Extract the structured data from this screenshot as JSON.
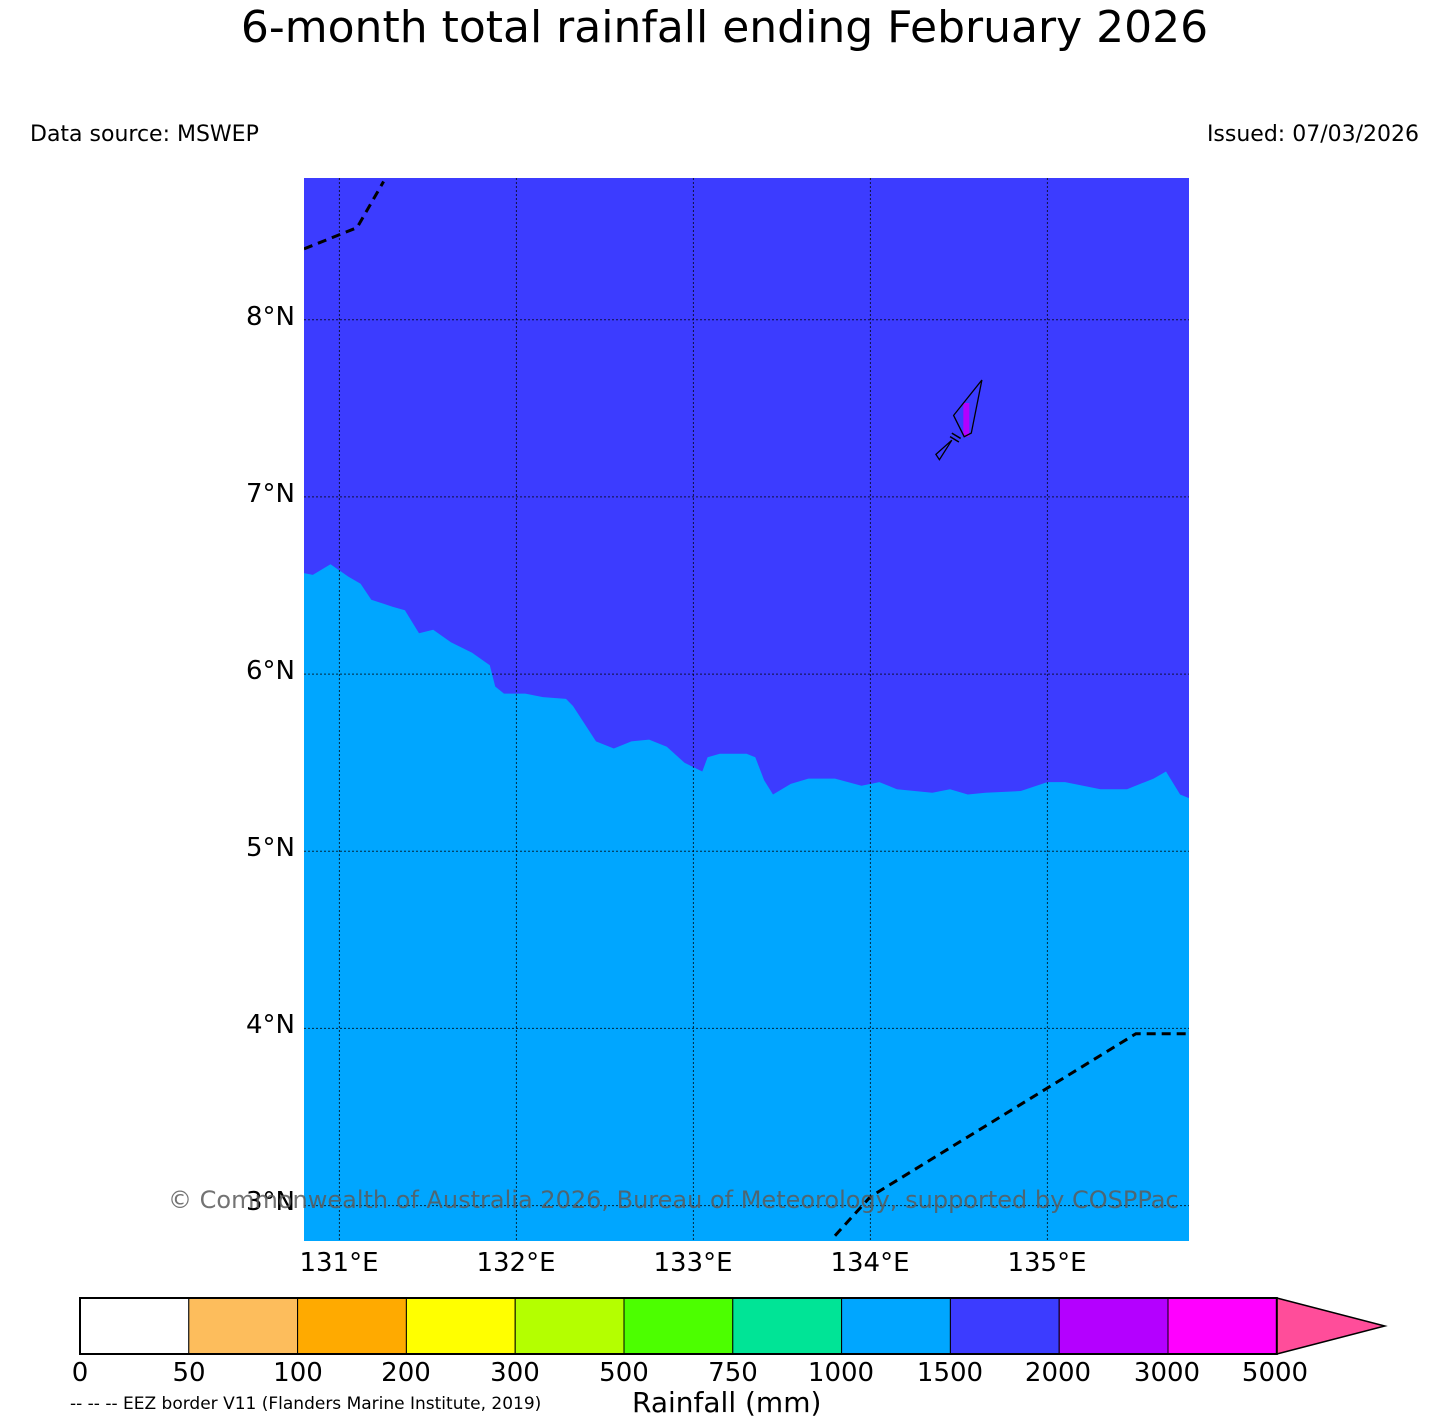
{
  "title": "6-month total rainfall ending February 2026",
  "data_source": "Data source: MSWEP",
  "issued": "Issued: 07/03/2026",
  "copyright": "© Commonwealth of Australia 2026, Bureau of Meteorology, supported by COSPPac",
  "eez_note": "-- -- -- EEZ border V11 (Flanders Marine Institute, 2019)",
  "colorbar_title": "Rainfall (mm)",
  "lat_labels": [
    "8°N",
    "7°N",
    "6°N",
    "5°N",
    "4°N",
    "3°N"
  ],
  "lon_labels": [
    "131°E",
    "132°E",
    "133°E",
    "134°E",
    "135°E"
  ],
  "colorbar_ticks": [
    "0",
    "50",
    "100",
    "200",
    "300",
    "500",
    "750",
    "1000",
    "1500",
    "2000",
    "3000",
    "5000"
  ],
  "colorbar_colors": [
    "#ffffff",
    "#fdbd5c",
    "#ffaa00",
    "#ffff00",
    "#b4ff00",
    "#4cff00",
    "#00e496",
    "#00a6ff",
    "#3c3cff",
    "#b400ff",
    "#ff00ff",
    "#ff4d9a"
  ],
  "chart_data": {
    "type": "map",
    "lon_range": [
      130.8,
      135.8
    ],
    "lat_range": [
      2.8,
      8.8
    ],
    "regions": [
      {
        "category": "1500-2000 mm",
        "color": "#3c3cff",
        "area": "north"
      },
      {
        "category": "1000-1500 mm",
        "color": "#00a6ff",
        "area": "south"
      },
      {
        "category": "2000-3000 mm",
        "color": "#b400ff",
        "area": "small patch near 134.55°E 7.45°N"
      }
    ],
    "boundary_1500_2000": [
      [
        130.8,
        6.57
      ],
      [
        130.85,
        6.56
      ],
      [
        130.95,
        6.62
      ],
      [
        131.05,
        6.55
      ],
      [
        131.12,
        6.51
      ],
      [
        131.18,
        6.42
      ],
      [
        131.3,
        6.38
      ],
      [
        131.37,
        6.36
      ],
      [
        131.45,
        6.23
      ],
      [
        131.53,
        6.25
      ],
      [
        131.63,
        6.18
      ],
      [
        131.75,
        6.12
      ],
      [
        131.85,
        6.05
      ],
      [
        131.88,
        5.93
      ],
      [
        131.93,
        5.89
      ],
      [
        132.05,
        5.89
      ],
      [
        132.15,
        5.87
      ],
      [
        132.28,
        5.86
      ],
      [
        132.32,
        5.82
      ],
      [
        132.45,
        5.62
      ],
      [
        132.55,
        5.58
      ],
      [
        132.65,
        5.62
      ],
      [
        132.75,
        5.63
      ],
      [
        132.85,
        5.59
      ],
      [
        132.95,
        5.5
      ],
      [
        133.05,
        5.45
      ],
      [
        133.08,
        5.53
      ],
      [
        133.15,
        5.55
      ],
      [
        133.3,
        5.55
      ],
      [
        133.35,
        5.53
      ],
      [
        133.4,
        5.4
      ],
      [
        133.45,
        5.32
      ],
      [
        133.55,
        5.38
      ],
      [
        133.65,
        5.41
      ],
      [
        133.8,
        5.41
      ],
      [
        133.95,
        5.37
      ],
      [
        134.05,
        5.39
      ],
      [
        134.15,
        5.35
      ],
      [
        134.35,
        5.33
      ],
      [
        134.45,
        5.35
      ],
      [
        134.55,
        5.32
      ],
      [
        134.65,
        5.33
      ],
      [
        134.85,
        5.34
      ],
      [
        135.0,
        5.39
      ],
      [
        135.1,
        5.39
      ],
      [
        135.3,
        5.35
      ],
      [
        135.45,
        5.35
      ],
      [
        135.6,
        5.41
      ],
      [
        135.67,
        5.45
      ],
      [
        135.75,
        5.32
      ],
      [
        135.8,
        5.3
      ]
    ],
    "eez_north": [
      [
        130.8,
        8.4
      ],
      [
        131.1,
        8.52
      ],
      [
        131.25,
        8.78
      ]
    ],
    "eez_south": [
      [
        133.8,
        2.83
      ],
      [
        134.0,
        3.05
      ],
      [
        135.5,
        3.97
      ],
      [
        135.8,
        3.97
      ]
    ],
    "island_outline": [
      [
        134.63,
        7.66
      ],
      [
        134.57,
        7.36
      ],
      [
        134.53,
        7.34
      ],
      [
        134.47,
        7.46
      ]
    ],
    "islet_outline": [
      [
        134.37,
        7.24
      ],
      [
        134.46,
        7.32
      ],
      [
        134.39,
        7.21
      ]
    ]
  }
}
